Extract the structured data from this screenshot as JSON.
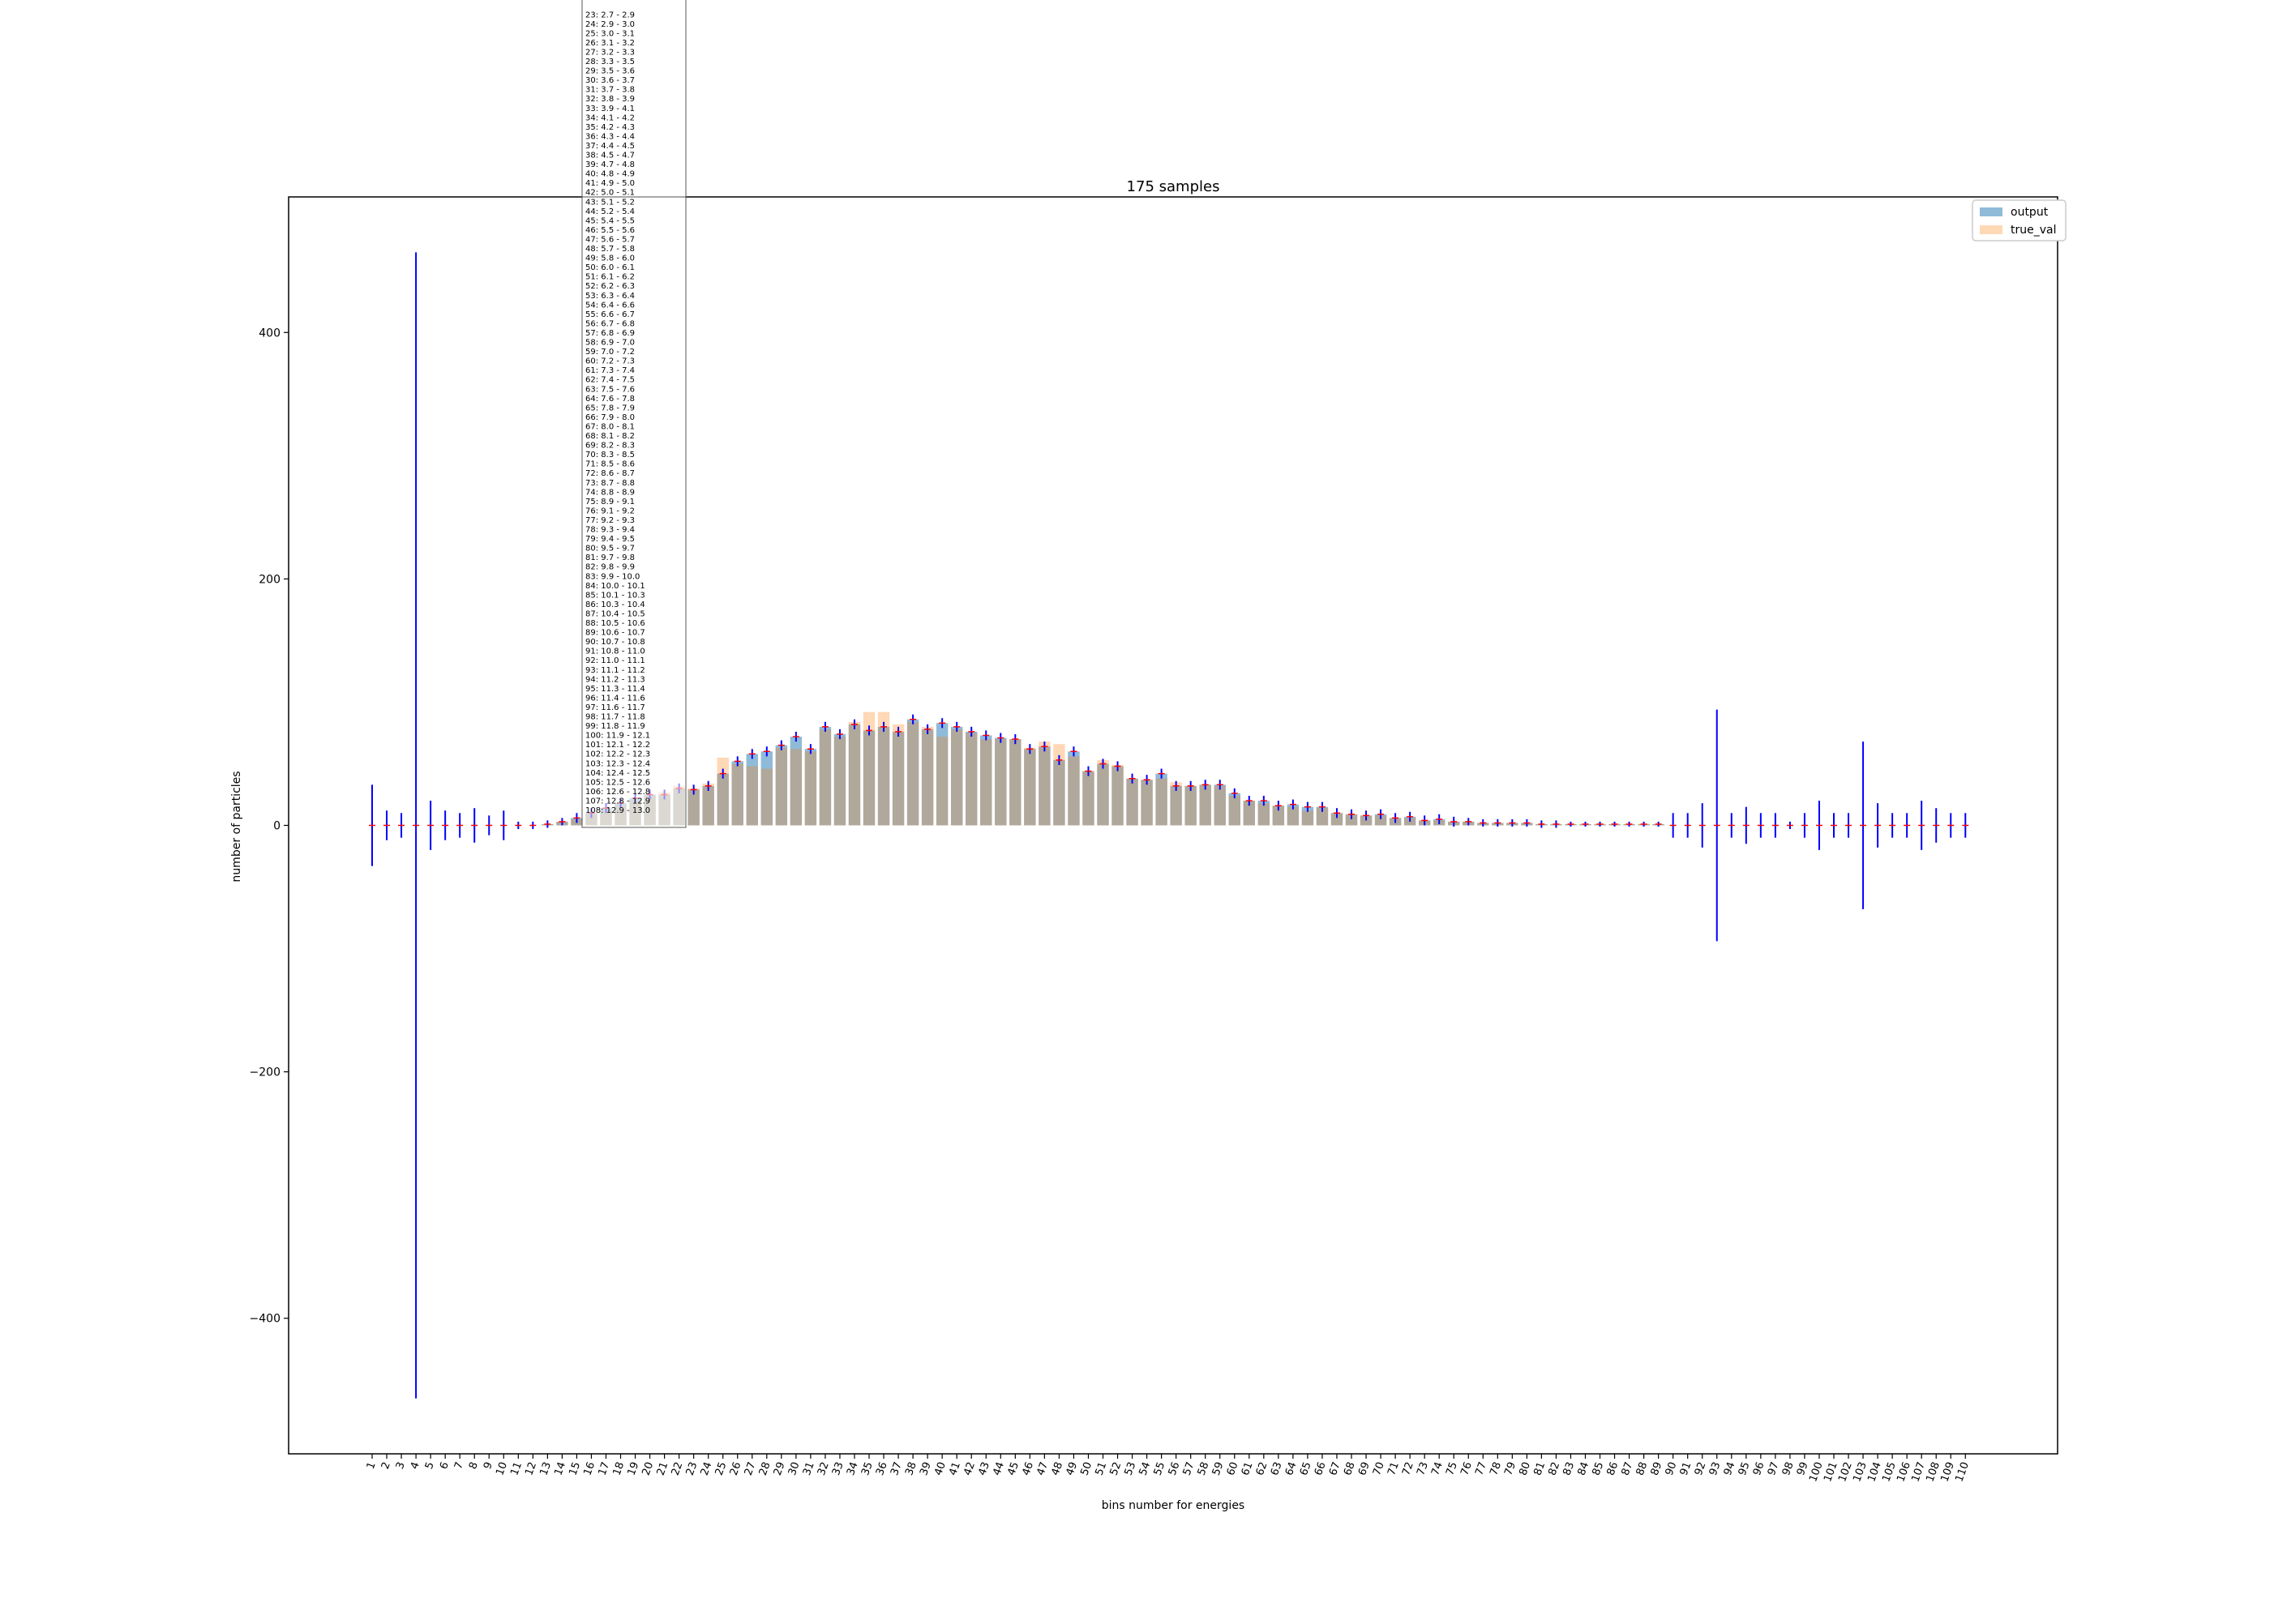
{
  "chart_data": {
    "type": "bar",
    "title": "175 samples",
    "xlabel": "bins number for energies",
    "ylabel": "number of particles",
    "ylim": [
      -510,
      510
    ],
    "yticks": [
      -400,
      -200,
      0,
      200,
      400
    ],
    "yticklabels": [
      "−400",
      "−200",
      "0",
      "200",
      "400"
    ],
    "legend": {
      "placement": "top-right",
      "entries": [
        "output",
        "true_val"
      ]
    },
    "grid": false,
    "colors": {
      "output": "#1f77b4",
      "true_val": "#ff7f0e",
      "errorbar": "#0000ff",
      "marker": "#ff0000"
    },
    "categories": [
      "1",
      "2",
      "3",
      "4",
      "5",
      "6",
      "7",
      "8",
      "9",
      "10",
      "11",
      "12",
      "13",
      "14",
      "15",
      "16",
      "17",
      "18",
      "19",
      "20",
      "21",
      "22",
      "23",
      "24",
      "25",
      "26",
      "27",
      "28",
      "29",
      "30",
      "31",
      "32",
      "33",
      "34",
      "35",
      "36",
      "37",
      "38",
      "39",
      "40",
      "41",
      "42",
      "43",
      "44",
      "45",
      "46",
      "47",
      "48",
      "49",
      "50",
      "51",
      "52",
      "53",
      "54",
      "55",
      "56",
      "57",
      "58",
      "59",
      "60",
      "61",
      "62",
      "63",
      "64",
      "65",
      "66",
      "67",
      "68",
      "69",
      "70",
      "71",
      "72",
      "73",
      "74",
      "75",
      "76",
      "77",
      "78",
      "79",
      "80",
      "81",
      "82",
      "83",
      "84",
      "85",
      "86",
      "87",
      "88",
      "89",
      "90",
      "91",
      "92",
      "93",
      "94",
      "95",
      "96",
      "97",
      "98",
      "99",
      "100",
      "101",
      "102",
      "103",
      "104",
      "105",
      "106",
      "107",
      "108",
      "109",
      "110"
    ],
    "series": [
      {
        "name": "output",
        "values": [
          0,
          0,
          0,
          0,
          0,
          0,
          0,
          0,
          0,
          0,
          0,
          0,
          1,
          3,
          6,
          10,
          14,
          18,
          22,
          25,
          25,
          30,
          29,
          32,
          42,
          52,
          58,
          60,
          65,
          72,
          62,
          80,
          74,
          82,
          77,
          80,
          76,
          86,
          78,
          83,
          80,
          76,
          73,
          71,
          70,
          62,
          64,
          53,
          60,
          44,
          50,
          48,
          38,
          37,
          42,
          32,
          32,
          33,
          33,
          26,
          20,
          20,
          16,
          17,
          15,
          15,
          10,
          9,
          8,
          9,
          6,
          7,
          4,
          5,
          3,
          3,
          2,
          2,
          2,
          2,
          1,
          1,
          1,
          1,
          1,
          1,
          1,
          1,
          1,
          0,
          0,
          0,
          0,
          0,
          0,
          0,
          0,
          0,
          0,
          0,
          0,
          0,
          0,
          0,
          0,
          0,
          0,
          0,
          0,
          0
        ]
      },
      {
        "name": "true_val",
        "values": [
          0,
          0,
          0,
          0,
          0,
          0,
          0,
          0,
          0,
          0,
          0,
          0,
          1,
          3,
          5,
          9,
          12,
          16,
          20,
          24,
          27,
          32,
          30,
          34,
          55,
          50,
          48,
          46,
          63,
          62,
          60,
          78,
          72,
          84,
          92,
          92,
          82,
          84,
          80,
          72,
          78,
          75,
          70,
          70,
          70,
          63,
          68,
          66,
          56,
          44,
          53,
          49,
          38,
          37,
          38,
          35,
          32,
          33,
          32,
          24,
          20,
          18,
          16,
          15,
          12,
          14,
          10,
          9,
          8,
          8,
          6,
          6,
          4,
          4,
          3,
          3,
          2,
          2,
          2,
          2,
          1,
          1,
          1,
          1,
          1,
          1,
          1,
          1,
          1,
          0,
          0,
          0,
          0,
          0,
          0,
          0,
          0,
          0,
          0,
          0,
          0,
          0,
          0,
          0,
          0,
          0,
          0,
          0,
          0,
          0
        ]
      }
    ],
    "errorbars": [
      33,
      12,
      10,
      465,
      20,
      12,
      10,
      14,
      8,
      12,
      3,
      3,
      3,
      3,
      4,
      4,
      4,
      4,
      4,
      4,
      4,
      4,
      4,
      4,
      4,
      4,
      4,
      4,
      4,
      4,
      4,
      4,
      4,
      4,
      4,
      4,
      4,
      4,
      4,
      4,
      4,
      4,
      4,
      4,
      4,
      4,
      4,
      4,
      4,
      4,
      4,
      4,
      4,
      4,
      4,
      4,
      4,
      4,
      4,
      4,
      4,
      4,
      4,
      4,
      4,
      4,
      4,
      4,
      4,
      4,
      4,
      4,
      4,
      4,
      4,
      3,
      3,
      3,
      3,
      3,
      3,
      3,
      2,
      2,
      2,
      2,
      2,
      2,
      2,
      10,
      10,
      18,
      94,
      10,
      15,
      10,
      10,
      3,
      10,
      20,
      10,
      10,
      68,
      18,
      10,
      10,
      20,
      14,
      10,
      10,
      10
    ]
  },
  "bin_table": [
    "23: 2.7 - 2.9",
    "24: 2.9 - 3.0",
    "25: 3.0 - 3.1",
    "26: 3.1 - 3.2",
    "27: 3.2 - 3.3",
    "28: 3.3 - 3.5",
    "29: 3.5 - 3.6",
    "30: 3.6 - 3.7",
    "31: 3.7 - 3.8",
    "32: 3.8 - 3.9",
    "33: 3.9 - 4.1",
    "34: 4.1 - 4.2",
    "35: 4.2 - 4.3",
    "36: 4.3 - 4.4",
    "37: 4.4 - 4.5",
    "38: 4.5 - 4.7",
    "39: 4.7 - 4.8",
    "40: 4.8 - 4.9",
    "41: 4.9 - 5.0",
    "42: 5.0 - 5.1",
    "43: 5.1 - 5.2",
    "44: 5.2 - 5.4",
    "45: 5.4 - 5.5",
    "46: 5.5 - 5.6",
    "47: 5.6 - 5.7",
    "48: 5.7 - 5.8",
    "49: 5.8 - 6.0",
    "50: 6.0 - 6.1",
    "51: 6.1 - 6.2",
    "52: 6.2 - 6.3",
    "53: 6.3 - 6.4",
    "54: 6.4 - 6.6",
    "55: 6.6 - 6.7",
    "56: 6.7 - 6.8",
    "57: 6.8 - 6.9",
    "58: 6.9 - 7.0",
    "59: 7.0 - 7.2",
    "60: 7.2 - 7.3",
    "61: 7.3 - 7.4",
    "62: 7.4 - 7.5",
    "63: 7.5 - 7.6",
    "64: 7.6 - 7.8",
    "65: 7.8 - 7.9",
    "66: 7.9 - 8.0",
    "67: 8.0 - 8.1",
    "68: 8.1 - 8.2",
    "69: 8.2 - 8.3",
    "70: 8.3 - 8.5",
    "71: 8.5 - 8.6",
    "72: 8.6 - 8.7",
    "73: 8.7 - 8.8",
    "74: 8.8 - 8.9",
    "75: 8.9 - 9.1",
    "76: 9.1 - 9.2",
    "77: 9.2 - 9.3",
    "78: 9.3 - 9.4",
    "79: 9.4 - 9.5",
    "80: 9.5 - 9.7",
    "81: 9.7 - 9.8",
    "82: 9.8 - 9.9",
    "83: 9.9 - 10.0",
    "84: 10.0 - 10.1",
    "85: 10.1 - 10.3",
    "86: 10.3 - 10.4",
    "87: 10.4 - 10.5",
    "88: 10.5 - 10.6",
    "89: 10.6 - 10.7",
    "90: 10.7 - 10.8",
    "91: 10.8 - 11.0",
    "92: 11.0 - 11.1",
    "93: 11.1 - 11.2",
    "94: 11.2 - 11.3",
    "95: 11.3 - 11.4",
    "96: 11.4 - 11.6",
    "97: 11.6 - 11.7",
    "98: 11.7 - 11.8",
    "99: 11.8 - 11.9",
    "100: 11.9 - 12.1",
    "101: 12.1 - 12.2",
    "102: 12.2 - 12.3",
    "103: 12.3 - 12.4",
    "104: 12.4 - 12.5",
    "105: 12.5 - 12.6",
    "106: 12.6 - 12.8",
    "107: 12.8 - 12.9",
    "108: 12.9 - 13.0"
  ]
}
